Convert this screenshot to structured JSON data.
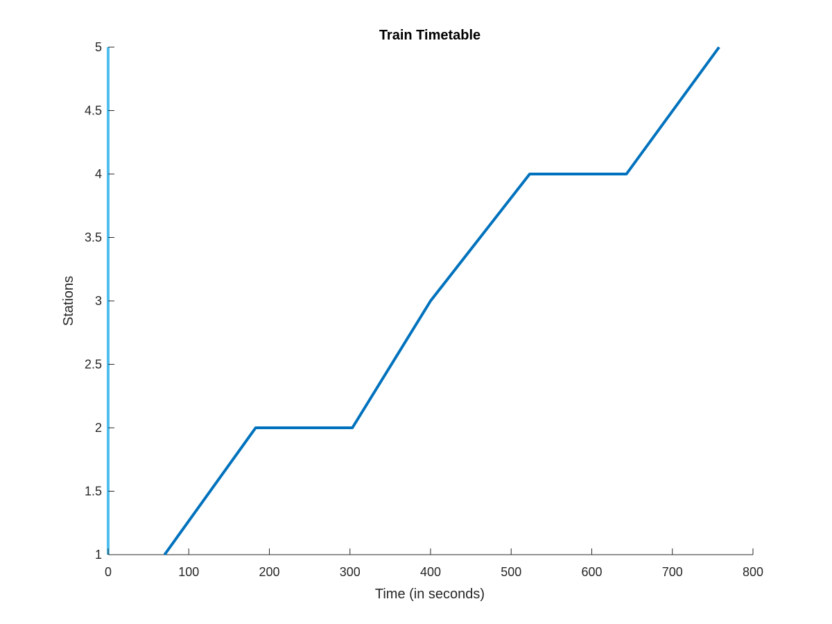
{
  "chart_data": {
    "type": "line",
    "title": "Train Timetable",
    "xlabel": "Time (in seconds)",
    "ylabel": "Stations",
    "xlim": [
      0,
      800
    ],
    "ylim": [
      1,
      5
    ],
    "xticks": [
      0,
      100,
      200,
      300,
      400,
      500,
      600,
      700,
      800
    ],
    "yticks": [
      1,
      1.5,
      2,
      2.5,
      3,
      3.5,
      4,
      4.5,
      5
    ],
    "grid": false,
    "series": [
      {
        "color": "#0072BD",
        "x": [
          70,
          183,
          303,
          400,
          523,
          643,
          758
        ],
        "y": [
          1,
          2,
          2,
          3,
          4,
          4,
          5
        ]
      }
    ],
    "highlight_x": {
      "value": 0,
      "color": "#4DBEEE"
    }
  }
}
